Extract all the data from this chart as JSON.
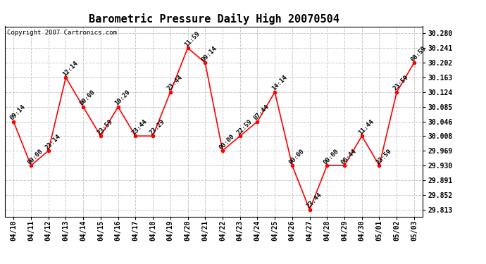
{
  "title": "Barometric Pressure Daily High 20070504",
  "copyright": "Copyright 2007 Cartronics.com",
  "dates": [
    "04/10",
    "04/11",
    "04/12",
    "04/13",
    "04/14",
    "04/15",
    "04/16",
    "04/17",
    "04/18",
    "04/19",
    "04/20",
    "04/21",
    "04/22",
    "04/23",
    "04/24",
    "04/25",
    "04/26",
    "04/27",
    "04/28",
    "04/29",
    "04/30",
    "05/01",
    "05/02",
    "05/03"
  ],
  "values": [
    30.046,
    29.93,
    29.969,
    30.163,
    30.085,
    30.008,
    30.085,
    30.008,
    30.008,
    30.124,
    30.241,
    30.202,
    29.969,
    30.008,
    30.046,
    30.124,
    29.93,
    29.813,
    29.93,
    29.93,
    30.008,
    29.93,
    30.124,
    30.202
  ],
  "labels": [
    "09:14",
    "00:00",
    "23:14",
    "12:14",
    "00:00",
    "23:59",
    "10:29",
    "23:44",
    "23:29",
    "23:44",
    "11:59",
    "09:14",
    "00:00",
    "22:59",
    "07:44",
    "14:14",
    "00:00",
    "23:44",
    "00:00",
    "06:44",
    "11:44",
    "23:59",
    "23:59",
    "08:59"
  ],
  "line_color": "#ff0000",
  "marker_color": "#ff0000",
  "background_color": "#ffffff",
  "grid_color": "#c8c8c8",
  "title_fontsize": 11,
  "label_fontsize": 6.5,
  "tick_fontsize": 7,
  "copyright_fontsize": 6.5,
  "yticks": [
    29.813,
    29.852,
    29.891,
    29.93,
    29.969,
    30.008,
    30.046,
    30.085,
    30.124,
    30.163,
    30.202,
    30.241,
    30.28
  ],
  "ylim": [
    29.795,
    30.298
  ],
  "xlim": [
    -0.5,
    23.5
  ]
}
